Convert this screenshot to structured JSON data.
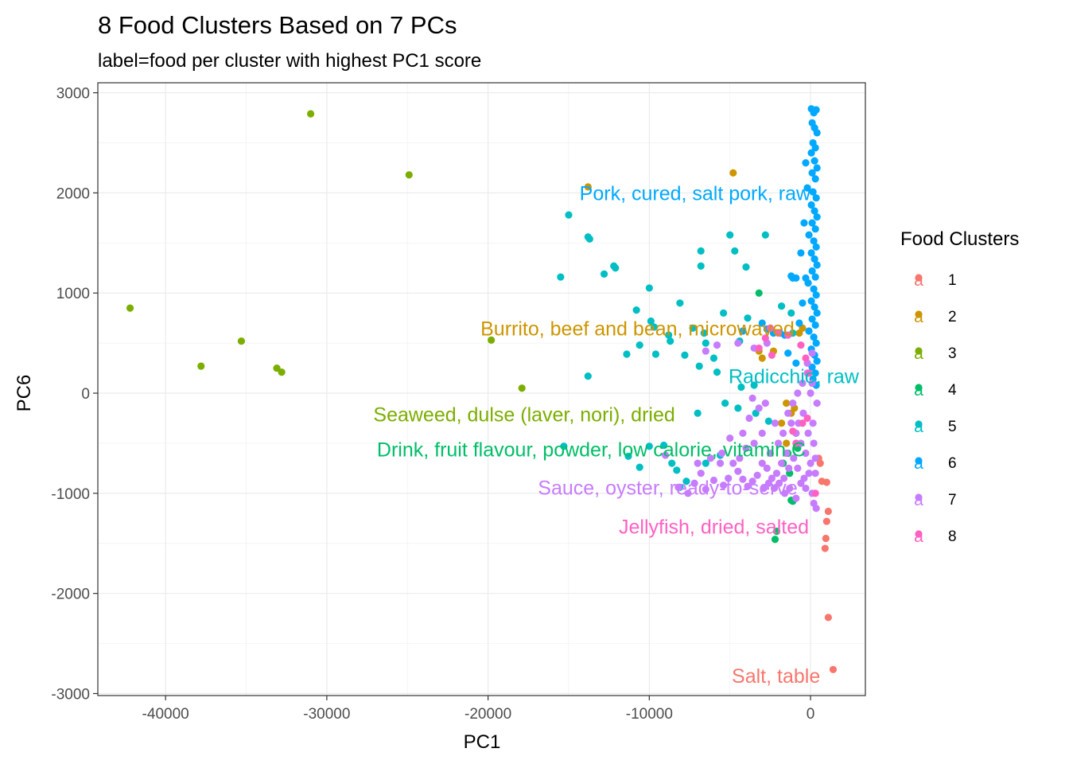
{
  "chart_data": {
    "type": "scatter",
    "title": "8 Food Clusters Based on 7 PCs",
    "subtitle": "label=food per cluster with highest PC1 score",
    "xlabel": "PC1",
    "ylabel": "PC6",
    "xlim": [
      -44200,
      3400
    ],
    "ylim": [
      -3020,
      3100
    ],
    "xticks": [
      -40000,
      -30000,
      -20000,
      -10000,
      0
    ],
    "xtick_labels": [
      "-40000",
      "-30000",
      "-20000",
      "-10000",
      "0"
    ],
    "yticks": [
      -3000,
      -2000,
      -1000,
      0,
      1000,
      2000,
      3000
    ],
    "ytick_labels": [
      "-3000",
      "-2000",
      "-1000",
      "0",
      "1000",
      "2000",
      "3000"
    ],
    "grid": true,
    "legend": {
      "title": "Food Clusters",
      "position": "right",
      "key_glyph": "a",
      "entries": [
        "1",
        "2",
        "3",
        "4",
        "5",
        "6",
        "7",
        "8"
      ]
    },
    "series": [
      {
        "name": "1",
        "color": "#F8766D",
        "points": [
          [
            1400,
            -2760
          ],
          [
            1100,
            -2240
          ],
          [
            900,
            -1550
          ],
          [
            950,
            -1450
          ],
          [
            1000,
            -1280
          ],
          [
            1100,
            -1180
          ],
          [
            1000,
            -890
          ],
          [
            700,
            -880
          ],
          [
            600,
            -700
          ],
          [
            500,
            -650
          ]
        ]
      },
      {
        "name": "2",
        "color": "#CD9600",
        "points": [
          [
            -13800,
            2060
          ],
          [
            -4800,
            2200
          ],
          [
            -3000,
            350
          ],
          [
            -3200,
            420
          ],
          [
            -1500,
            -100
          ],
          [
            -1200,
            -200
          ],
          [
            -1800,
            -300
          ],
          [
            -900,
            -400
          ],
          [
            -500,
            650
          ],
          [
            -700,
            600
          ],
          [
            -1000,
            -150
          ],
          [
            -2300,
            420
          ],
          [
            -1500,
            -500
          ]
        ]
      },
      {
        "name": "3",
        "color": "#7CAE00",
        "points": [
          [
            -42200,
            850
          ],
          [
            -37800,
            270
          ],
          [
            -35300,
            520
          ],
          [
            -33100,
            250
          ],
          [
            -32800,
            210
          ],
          [
            -31000,
            2790
          ],
          [
            -24900,
            2180
          ],
          [
            -19800,
            530
          ],
          [
            -17900,
            50
          ]
        ]
      },
      {
        "name": "4",
        "color": "#00BE67",
        "points": [
          [
            -3200,
            1000
          ],
          [
            -2200,
            -1460
          ],
          [
            -2100,
            -1380
          ],
          [
            -1200,
            -1070
          ],
          [
            -1100,
            -1080
          ],
          [
            -1400,
            -600
          ],
          [
            -800,
            -550
          ],
          [
            -1700,
            -700
          ],
          [
            -1300,
            -800
          ]
        ]
      },
      {
        "name": "5",
        "color": "#00BFC4",
        "points": [
          [
            -15000,
            1780
          ],
          [
            -15500,
            1160
          ],
          [
            -13800,
            1560
          ],
          [
            -13700,
            1540
          ],
          [
            -12800,
            1190
          ],
          [
            -12200,
            1270
          ],
          [
            -12100,
            1250
          ],
          [
            -11400,
            390
          ],
          [
            -10800,
            830
          ],
          [
            -10600,
            480
          ],
          [
            -10000,
            1050
          ],
          [
            -9900,
            720
          ],
          [
            -9700,
            660
          ],
          [
            -9600,
            390
          ],
          [
            -8800,
            580
          ],
          [
            -8700,
            520
          ],
          [
            -8100,
            900
          ],
          [
            -7800,
            380
          ],
          [
            -7300,
            650
          ],
          [
            -6800,
            1420
          ],
          [
            -6800,
            1270
          ],
          [
            -6600,
            600
          ],
          [
            -6500,
            500
          ],
          [
            -6000,
            350
          ],
          [
            -5400,
            800
          ],
          [
            -5000,
            1580
          ],
          [
            -4700,
            1420
          ],
          [
            -4400,
            520
          ],
          [
            -4000,
            1260
          ],
          [
            -3900,
            750
          ],
          [
            -2800,
            1580
          ],
          [
            -1800,
            870
          ],
          [
            -1200,
            800
          ],
          [
            -1100,
            600
          ],
          [
            -6900,
            270
          ],
          [
            -5800,
            210
          ],
          [
            -4300,
            60
          ],
          [
            -3500,
            80
          ],
          [
            -7000,
            -200
          ],
          [
            -5300,
            -100
          ],
          [
            -4500,
            -150
          ],
          [
            -3400,
            -200
          ],
          [
            -2600,
            -280
          ],
          [
            -13800,
            170
          ],
          [
            -15300,
            -530
          ],
          [
            -11300,
            -630
          ],
          [
            -10600,
            -740
          ],
          [
            -10000,
            -530
          ],
          [
            -9100,
            -520
          ],
          [
            -8600,
            -700
          ],
          [
            -8300,
            -770
          ],
          [
            -8100,
            -940
          ],
          [
            -7700,
            -880
          ],
          [
            -6500,
            -700
          ],
          [
            -5600,
            -620
          ]
        ]
      },
      {
        "name": "6",
        "color": "#00A9FF",
        "points": [
          [
            50,
            2840
          ],
          [
            200,
            2800
          ],
          [
            350,
            2830
          ],
          [
            100,
            2700
          ],
          [
            250,
            2650
          ],
          [
            400,
            2600
          ],
          [
            150,
            2500
          ],
          [
            300,
            2450
          ],
          [
            50,
            2400
          ],
          [
            250,
            2320
          ],
          [
            400,
            2250
          ],
          [
            100,
            2200
          ],
          [
            300,
            2140
          ],
          [
            -200,
            2050
          ],
          [
            150,
            2010
          ],
          [
            350,
            1950
          ],
          [
            50,
            1880
          ],
          [
            250,
            1820
          ],
          [
            400,
            1760
          ],
          [
            100,
            1700
          ],
          [
            300,
            1640
          ],
          [
            -100,
            1580
          ],
          [
            200,
            1520
          ],
          [
            350,
            1460
          ],
          [
            50,
            1400
          ],
          [
            250,
            1340
          ],
          [
            400,
            1280
          ],
          [
            100,
            1220
          ],
          [
            300,
            1160
          ],
          [
            -150,
            1100
          ],
          [
            200,
            1040
          ],
          [
            350,
            980
          ],
          [
            50,
            920
          ],
          [
            250,
            860
          ],
          [
            400,
            800
          ],
          [
            100,
            740
          ],
          [
            300,
            680
          ],
          [
            -100,
            620
          ],
          [
            200,
            560
          ],
          [
            350,
            500
          ],
          [
            50,
            440
          ],
          [
            250,
            380
          ],
          [
            400,
            320
          ],
          [
            100,
            260
          ],
          [
            300,
            200
          ],
          [
            150,
            140
          ],
          [
            350,
            80
          ],
          [
            -300,
            1150
          ],
          [
            -500,
            900
          ],
          [
            -700,
            700
          ],
          [
            -600,
            1400
          ],
          [
            -400,
            1700
          ],
          [
            -300,
            2300
          ],
          [
            -1100,
            1150
          ],
          [
            -1200,
            1170
          ],
          [
            -900,
            1150
          ],
          [
            -3000,
            700
          ],
          [
            -2700,
            640
          ],
          [
            -2300,
            600
          ],
          [
            -1900,
            600
          ],
          [
            -1600,
            580
          ],
          [
            -4200,
            620
          ],
          [
            -1400,
            400
          ],
          [
            -900,
            300
          ]
        ]
      },
      {
        "name": "7",
        "color": "#C77CFF",
        "points": [
          [
            -1200,
            -300
          ],
          [
            -900,
            -400
          ],
          [
            -600,
            -500
          ],
          [
            -300,
            -600
          ],
          [
            0,
            -700
          ],
          [
            300,
            -800
          ],
          [
            -1500,
            -600
          ],
          [
            -1800,
            -700
          ],
          [
            -2100,
            -800
          ],
          [
            -2400,
            -850
          ],
          [
            -2700,
            -750
          ],
          [
            -3000,
            -700
          ],
          [
            -3300,
            -820
          ],
          [
            -3600,
            -880
          ],
          [
            -3900,
            -930
          ],
          [
            -4200,
            -860
          ],
          [
            -4500,
            -780
          ],
          [
            -4800,
            -700
          ],
          [
            -5100,
            -850
          ],
          [
            -5400,
            -920
          ],
          [
            -6000,
            -870
          ],
          [
            -6500,
            -960
          ],
          [
            -7200,
            -900
          ],
          [
            -7600,
            -1000
          ],
          [
            -8200,
            -940
          ],
          [
            -9000,
            -620
          ],
          [
            -2500,
            -600
          ],
          [
            -2000,
            -500
          ],
          [
            -1700,
            -400
          ],
          [
            -1400,
            -200
          ],
          [
            -1100,
            -100
          ],
          [
            -800,
            0
          ],
          [
            -500,
            100
          ],
          [
            -200,
            200
          ],
          [
            100,
            100
          ],
          [
            400,
            -100
          ],
          [
            -3000,
            -400
          ],
          [
            -3500,
            -500
          ],
          [
            -4000,
            -550
          ],
          [
            -2200,
            -300
          ],
          [
            -4500,
            500
          ],
          [
            -3500,
            450
          ],
          [
            -2700,
            500
          ],
          [
            -5800,
            480
          ],
          [
            -6500,
            420
          ],
          [
            -3200,
            -150
          ],
          [
            -3800,
            -250
          ],
          [
            -600,
            -900
          ],
          [
            -300,
            -950
          ],
          [
            100,
            -1000
          ],
          [
            -1300,
            -950
          ],
          [
            -900,
            -1050
          ],
          [
            200,
            -1100
          ],
          [
            350,
            -1150
          ],
          [
            -7000,
            -700
          ],
          [
            -6800,
            -800
          ],
          [
            -5600,
            -700
          ],
          [
            -4400,
            -650
          ],
          [
            -2900,
            -950
          ],
          [
            -2600,
            -900
          ],
          [
            -1600,
            -1000
          ],
          [
            -150,
            -400
          ],
          [
            150,
            -300
          ],
          [
            -450,
            -200
          ],
          [
            -750,
            -300
          ],
          [
            -1050,
            -650
          ],
          [
            -1350,
            -750
          ],
          [
            -1650,
            -850
          ],
          [
            -1950,
            -900
          ],
          [
            -2250,
            -950
          ],
          [
            0,
            0
          ],
          [
            200,
            -500
          ],
          [
            -100,
            -800
          ],
          [
            -200,
            300
          ],
          [
            100,
            400
          ],
          [
            300,
            -650
          ],
          [
            -800,
            -750
          ],
          [
            -400,
            -850
          ],
          [
            -2800,
            -100
          ],
          [
            -3600,
            -50
          ],
          [
            -4200,
            -400
          ],
          [
            -5000,
            -450
          ],
          [
            -5500,
            -600
          ],
          [
            -6200,
            -650
          ]
        ]
      },
      {
        "name": "8",
        "color": "#FF61C3",
        "points": [
          [
            -2800,
            550
          ],
          [
            -2500,
            650
          ],
          [
            -2000,
            600
          ],
          [
            -1400,
            580
          ],
          [
            -600,
            480
          ],
          [
            -300,
            350
          ],
          [
            -100,
            200
          ],
          [
            -1100,
            -380
          ],
          [
            -500,
            -300
          ],
          [
            -200,
            -250
          ],
          [
            -900,
            -500
          ],
          [
            300,
            -1000
          ],
          [
            -3200,
            450
          ],
          [
            -2400,
            380
          ]
        ]
      }
    ],
    "annotations": [
      {
        "text": "Pork, cured, salt pork, raw",
        "x": 0,
        "y": 2000,
        "cluster": "6",
        "color": "#00A9FF"
      },
      {
        "text": "Burrito, beef and bean, microwaved",
        "x": -1000,
        "y": 650,
        "cluster": "2",
        "color": "#CD9600"
      },
      {
        "text": "Radicchio, raw",
        "x": 3000,
        "y": 170,
        "cluster": "5",
        "color": "#00BFC4"
      },
      {
        "text": "Seaweed, dulse (laver, nori), dried",
        "x": -8400,
        "y": -210,
        "cluster": "3",
        "color": "#7CAE00"
      },
      {
        "text": "Drink, fruit flavour, powder, low calorie, vitamin C",
        "x": -300,
        "y": -560,
        "cluster": "4",
        "color": "#00BE67"
      },
      {
        "text": "Sauce, oyster, ready-to-serve",
        "x": -800,
        "y": -940,
        "cluster": "7",
        "color": "#C77CFF"
      },
      {
        "text": "Jellyfish, dried, salted",
        "x": -100,
        "y": -1330,
        "cluster": "8",
        "color": "#FF61C3"
      },
      {
        "text": "Salt, table",
        "x": 600,
        "y": -2820,
        "cluster": "1",
        "color": "#F8766D"
      }
    ]
  }
}
